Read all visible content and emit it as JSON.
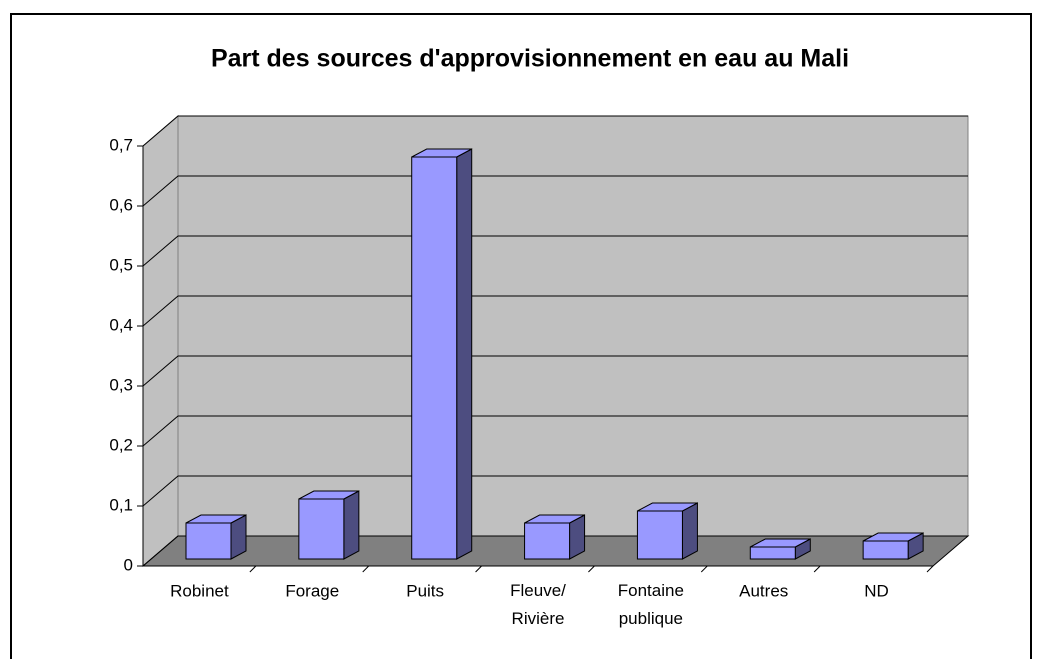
{
  "chart_data": {
    "type": "bar3d",
    "title": "Part des sources d'approvisionnement en eau au Mali",
    "categories": [
      "Robinet",
      "Forage",
      "Puits",
      "Fleuve/ Rivière",
      "Fontaine publique",
      "Autres",
      "ND"
    ],
    "values": [
      0.06,
      0.1,
      0.67,
      0.06,
      0.08,
      0.02,
      0.03
    ],
    "color": "#9999ff",
    "ylim": [
      0,
      0.7
    ],
    "yticks": [
      0,
      {
        "value": 0.1,
        "label": "0,1"
      },
      {
        "value": 0.2,
        "label": "0,2"
      },
      {
        "value": 0.3,
        "label": "0,3"
      },
      {
        "value": 0.4,
        "label": "0,4"
      },
      {
        "value": 0.5,
        "label": "0,5"
      },
      {
        "value": 0.6,
        "label": "0,6"
      },
      {
        "value": 0.7,
        "label": "0,7"
      }
    ],
    "grid": true
  }
}
